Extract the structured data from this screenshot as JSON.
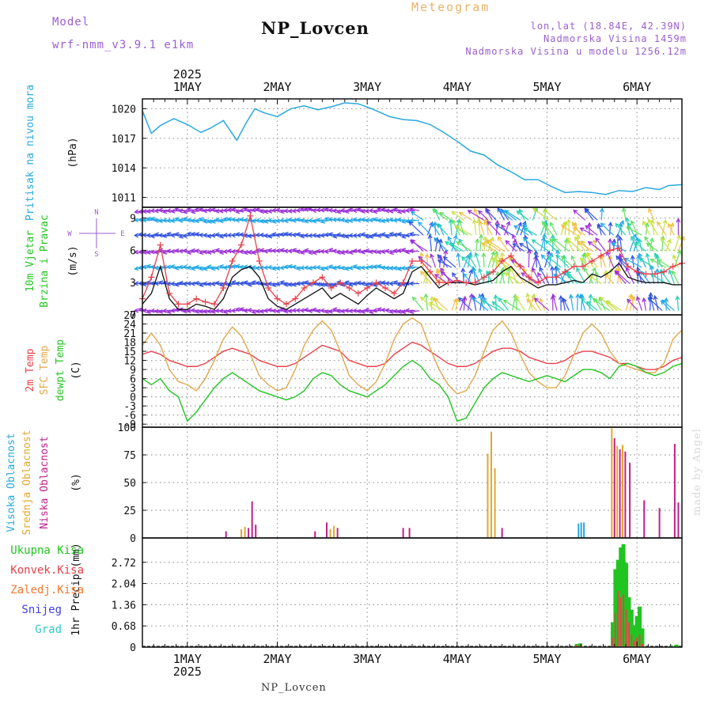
{
  "header": {
    "model_label": "Model",
    "model_value": "wrf-nmm_v3.9.1 e1km",
    "title": "NP_Lovcen",
    "subtitle": "Meteogram",
    "lonlat": "lon,lat (18.84E, 42.39N)",
    "altitude": "Nadmorska Visina 1459m",
    "model_altitude": "Nadmorska Visina u modelu 1256.12m",
    "footer": "NP_Lovcen",
    "watermark": "made by Angel"
  },
  "colors": {
    "pressure": "#29a8e0",
    "temp2m": "#e8414a",
    "sfc": "#e0a84a",
    "dewpt": "#22c422",
    "wind_speed": "#111111",
    "wind_gust": "#e8414a",
    "cloud_high": "#29a8e0",
    "cloud_mid": "#e0a830",
    "cloud_low": "#c0208a",
    "precip_total": "#22c422",
    "precip_conv": "#e8414a",
    "precip_frozen": "#f07830",
    "snow": "#4040e0",
    "graupel": "#30c8c8"
  },
  "chart_data": [
    {
      "type": "line",
      "name": "sea-level-pressure",
      "ylabel": "Pritisak na nivou mora",
      "unit": "(hPa)",
      "ylim": [
        1010,
        1021
      ],
      "yticks": [
        1011,
        1014,
        1017,
        1020
      ],
      "x_days": [
        0.5,
        0.6,
        0.7,
        0.85,
        1.0,
        1.15,
        1.25,
        1.4,
        1.55,
        1.65,
        1.75,
        1.85,
        2.0,
        2.15,
        2.3,
        2.45,
        2.6,
        2.75,
        2.9,
        3.05,
        3.25,
        3.4,
        3.55,
        3.7,
        3.85,
        4.0,
        4.15,
        4.3,
        4.45,
        4.6,
        4.75,
        4.9,
        5.05,
        5.2,
        5.35,
        5.5,
        5.65,
        5.8,
        5.95,
        6.1,
        6.25,
        6.35,
        6.5
      ],
      "values": [
        1019.8,
        1017.5,
        1018.3,
        1019.0,
        1018.4,
        1017.6,
        1018.0,
        1018.8,
        1016.8,
        1018.5,
        1020.0,
        1019.6,
        1019.2,
        1020.0,
        1020.3,
        1019.9,
        1020.2,
        1020.6,
        1020.5,
        1020.0,
        1019.2,
        1018.9,
        1018.8,
        1018.4,
        1017.6,
        1016.7,
        1015.7,
        1015.3,
        1014.3,
        1013.6,
        1012.8,
        1012.8,
        1012.1,
        1011.5,
        1011.6,
        1011.5,
        1011.3,
        1011.7,
        1011.6,
        1012.0,
        1011.8,
        1012.2,
        1012.3
      ]
    },
    {
      "type": "line",
      "name": "wind",
      "ylabel": [
        "10m Vjetar",
        "Brzina i Pravac"
      ],
      "unit": "(m/s)",
      "compass": [
        "N",
        "W",
        "E",
        "S"
      ],
      "ylim": [
        0,
        10
      ],
      "yticks": [
        0,
        3,
        6,
        9
      ],
      "x_days": [
        0.5,
        0.6,
        0.7,
        0.8,
        0.9,
        1.0,
        1.1,
        1.2,
        1.3,
        1.4,
        1.5,
        1.6,
        1.7,
        1.8,
        1.9,
        2.0,
        2.1,
        2.2,
        2.3,
        2.4,
        2.5,
        2.6,
        2.7,
        2.8,
        2.9,
        3.0,
        3.1,
        3.2,
        3.3,
        3.4,
        3.5,
        3.6,
        3.7,
        3.8,
        3.9,
        4.0,
        4.1,
        4.2,
        4.3,
        4.4,
        4.5,
        4.6,
        4.7,
        4.8,
        4.9,
        5.0,
        5.1,
        5.2,
        5.3,
        5.4,
        5.5,
        5.6,
        5.7,
        5.8,
        5.9,
        6.0,
        6.1,
        6.2,
        6.3,
        6.4,
        6.5
      ],
      "series": [
        {
          "name": "wind_speed",
          "values": [
            1.0,
            2.0,
            4.5,
            1.5,
            0.5,
            0.5,
            1.0,
            0.8,
            0.5,
            1.5,
            3.5,
            4.2,
            4.5,
            3.5,
            1.5,
            0.8,
            0.5,
            1.0,
            1.5,
            2.0,
            2.5,
            1.5,
            2.0,
            1.5,
            1.0,
            1.8,
            2.5,
            2.0,
            1.5,
            2.0,
            4.0,
            4.5,
            3.5,
            2.5,
            3.0,
            3.0,
            3.0,
            2.8,
            3.0,
            3.2,
            4.0,
            4.5,
            3.5,
            3.0,
            2.5,
            2.8,
            2.8,
            3.0,
            3.2,
            3.0,
            3.8,
            3.5,
            4.0,
            4.8,
            3.5,
            3.2,
            3.0,
            3.0,
            3.0,
            2.8,
            2.8
          ]
        },
        {
          "name": "wind_gust",
          "values": [
            1.5,
            3.5,
            6.5,
            2.0,
            1.0,
            1.0,
            1.5,
            1.2,
            1.0,
            2.5,
            5.0,
            6.5,
            9.2,
            5.0,
            2.5,
            1.5,
            1.0,
            1.5,
            2.5,
            3.0,
            3.5,
            2.5,
            3.0,
            2.5,
            2.0,
            2.5,
            3.0,
            2.5,
            2.0,
            3.0,
            5.0,
            5.0,
            4.0,
            3.0,
            3.0,
            3.2,
            3.0,
            3.0,
            3.5,
            4.0,
            5.0,
            5.5,
            4.5,
            3.5,
            3.0,
            3.5,
            3.5,
            4.0,
            4.5,
            4.5,
            5.0,
            5.5,
            6.0,
            6.2,
            4.5,
            4.0,
            3.8,
            3.8,
            4.0,
            4.5,
            4.8
          ]
        }
      ]
    },
    {
      "type": "line",
      "name": "temperature",
      "ylabel": [
        "2m Temp",
        "SFC Temp",
        "dewpt Temp"
      ],
      "unit": "(C)",
      "ylim": [
        -10,
        27
      ],
      "yticks": [
        -9,
        -6,
        -3,
        0,
        3,
        6,
        9,
        12,
        15,
        18,
        21,
        24,
        27
      ],
      "x_days": [
        0.5,
        0.6,
        0.7,
        0.8,
        0.9,
        1.0,
        1.1,
        1.2,
        1.3,
        1.4,
        1.5,
        1.6,
        1.7,
        1.8,
        1.9,
        2.0,
        2.1,
        2.2,
        2.3,
        2.4,
        2.5,
        2.6,
        2.7,
        2.8,
        2.9,
        3.0,
        3.1,
        3.2,
        3.3,
        3.4,
        3.5,
        3.6,
        3.7,
        3.8,
        3.9,
        4.0,
        4.1,
        4.2,
        4.3,
        4.4,
        4.5,
        4.6,
        4.7,
        4.8,
        4.9,
        5.0,
        5.1,
        5.2,
        5.3,
        5.4,
        5.5,
        5.6,
        5.7,
        5.8,
        5.9,
        6.0,
        6.1,
        6.2,
        6.3,
        6.4,
        6.5
      ],
      "series": [
        {
          "name": "2m_temp",
          "values": [
            14,
            15,
            14,
            12,
            11,
            10,
            10,
            11,
            13,
            15,
            16,
            15,
            14,
            12,
            11,
            10,
            10,
            11,
            13,
            15,
            17,
            16,
            15,
            12,
            11,
            10,
            10,
            11,
            14,
            16,
            18,
            17,
            15,
            13,
            11,
            10,
            10,
            11,
            13,
            15,
            16,
            16,
            15,
            13,
            12,
            11,
            11,
            12,
            14,
            15,
            15,
            14,
            13,
            11,
            11,
            10,
            9,
            9,
            10,
            12,
            13
          ]
        },
        {
          "name": "sfc_temp",
          "values": [
            17,
            21,
            17,
            9,
            5,
            4,
            2,
            6,
            12,
            19,
            23,
            20,
            14,
            7,
            4,
            2,
            3,
            9,
            17,
            22,
            25,
            22,
            15,
            7,
            4,
            2,
            5,
            11,
            19,
            24,
            26,
            24,
            16,
            9,
            4,
            1,
            2,
            7,
            15,
            22,
            25,
            21,
            14,
            8,
            5,
            3,
            3,
            7,
            14,
            21,
            24,
            21,
            15,
            11,
            10,
            9,
            8,
            8,
            11,
            19,
            22
          ]
        },
        {
          "name": "dewpt_temp",
          "values": [
            6,
            4,
            6,
            2,
            0,
            -8,
            -5,
            -1,
            3,
            6,
            8,
            6,
            4,
            2,
            1,
            0,
            -1,
            0,
            2,
            6,
            8,
            7,
            4,
            2,
            1,
            0,
            2,
            4,
            7,
            10,
            12,
            10,
            6,
            4,
            0,
            -8,
            -7,
            -2,
            3,
            6,
            8,
            7,
            6,
            5,
            6,
            7,
            6,
            5,
            7,
            9,
            9,
            8,
            6,
            10,
            11,
            10,
            8,
            7,
            8,
            10,
            11
          ]
        }
      ]
    },
    {
      "type": "bar",
      "name": "cloud-cover",
      "ylabel": [
        "Visoka Oblacnost",
        "Srednja Oblacnost",
        "Niska Oblacnost"
      ],
      "unit": "(%)",
      "ylim": [
        0,
        100
      ],
      "yticks": [
        0,
        25,
        50,
        75,
        100
      ],
      "bars": [
        {
          "x": 1.43,
          "series": "low",
          "value": 6
        },
        {
          "x": 1.6,
          "series": "mid",
          "value": 8
        },
        {
          "x": 1.64,
          "series": "mid",
          "value": 10
        },
        {
          "x": 1.68,
          "series": "low",
          "value": 9
        },
        {
          "x": 1.72,
          "series": "low",
          "value": 33
        },
        {
          "x": 1.76,
          "series": "low",
          "value": 12
        },
        {
          "x": 2.42,
          "series": "low",
          "value": 6
        },
        {
          "x": 2.55,
          "series": "low",
          "value": 14
        },
        {
          "x": 2.59,
          "series": "mid",
          "value": 8
        },
        {
          "x": 2.63,
          "series": "mid",
          "value": 11
        },
        {
          "x": 2.67,
          "series": "low",
          "value": 9
        },
        {
          "x": 3.4,
          "series": "low",
          "value": 9
        },
        {
          "x": 3.47,
          "series": "low",
          "value": 9
        },
        {
          "x": 4.34,
          "series": "mid",
          "value": 76
        },
        {
          "x": 4.38,
          "series": "mid",
          "value": 96
        },
        {
          "x": 4.42,
          "series": "mid",
          "value": 63
        },
        {
          "x": 4.5,
          "series": "low",
          "value": 9
        },
        {
          "x": 5.35,
          "series": "high",
          "value": 13
        },
        {
          "x": 5.38,
          "series": "high",
          "value": 14
        },
        {
          "x": 5.41,
          "series": "high",
          "value": 14
        },
        {
          "x": 5.72,
          "series": "mid",
          "value": 99
        },
        {
          "x": 5.75,
          "series": "low",
          "value": 90
        },
        {
          "x": 5.78,
          "series": "mid",
          "value": 83
        },
        {
          "x": 5.81,
          "series": "low",
          "value": 80
        },
        {
          "x": 5.84,
          "series": "mid",
          "value": 84
        },
        {
          "x": 5.87,
          "series": "low",
          "value": 78
        },
        {
          "x": 5.92,
          "series": "low",
          "value": 68
        },
        {
          "x": 6.08,
          "series": "low",
          "value": 34
        },
        {
          "x": 6.25,
          "series": "low",
          "value": 27
        },
        {
          "x": 6.42,
          "series": "low",
          "value": 85
        },
        {
          "x": 6.46,
          "series": "low",
          "value": 32
        }
      ]
    },
    {
      "type": "bar",
      "name": "hourly-precip",
      "ylabel": "1hr Precip (mm)",
      "legend": [
        "Ukupna Kisa",
        "Konvek.Kisa",
        "Zaledj.Kisa",
        "Snijeg",
        "Grad"
      ],
      "ylim": [
        0,
        3.5
      ],
      "yticks": [
        0,
        0.68,
        1.36,
        2.04,
        2.72
      ],
      "ytick_labels": [
        "0",
        "0.68",
        "1.36",
        "2.04",
        "2.72"
      ],
      "x_days": [
        5.33,
        5.37,
        5.73,
        5.76,
        5.79,
        5.82,
        5.85,
        5.88,
        5.91,
        5.94,
        5.97,
        6.0,
        6.03,
        6.06,
        6.38,
        6.44
      ],
      "series": [
        {
          "name": "total",
          "values": [
            0.1,
            0.12,
            0.8,
            2.5,
            2.8,
            3.2,
            3.3,
            2.7,
            1.6,
            1.2,
            0.7,
            1.0,
            1.3,
            0.6,
            0.05,
            0.08
          ]
        },
        {
          "name": "convective",
          "values": [
            0.06,
            0.08,
            0.3,
            1.1,
            1.8,
            1.6,
            1.7,
            1.2,
            0.8,
            0.4,
            0.2,
            0.3,
            0.4,
            0.1,
            0.0,
            0.0
          ]
        }
      ]
    }
  ],
  "time_axis": {
    "year": "2025",
    "day_labels": [
      "1MAY",
      "2MAY",
      "3MAY",
      "4MAY",
      "5MAY",
      "6MAY"
    ],
    "xlim": [
      0.5,
      6.5
    ]
  }
}
